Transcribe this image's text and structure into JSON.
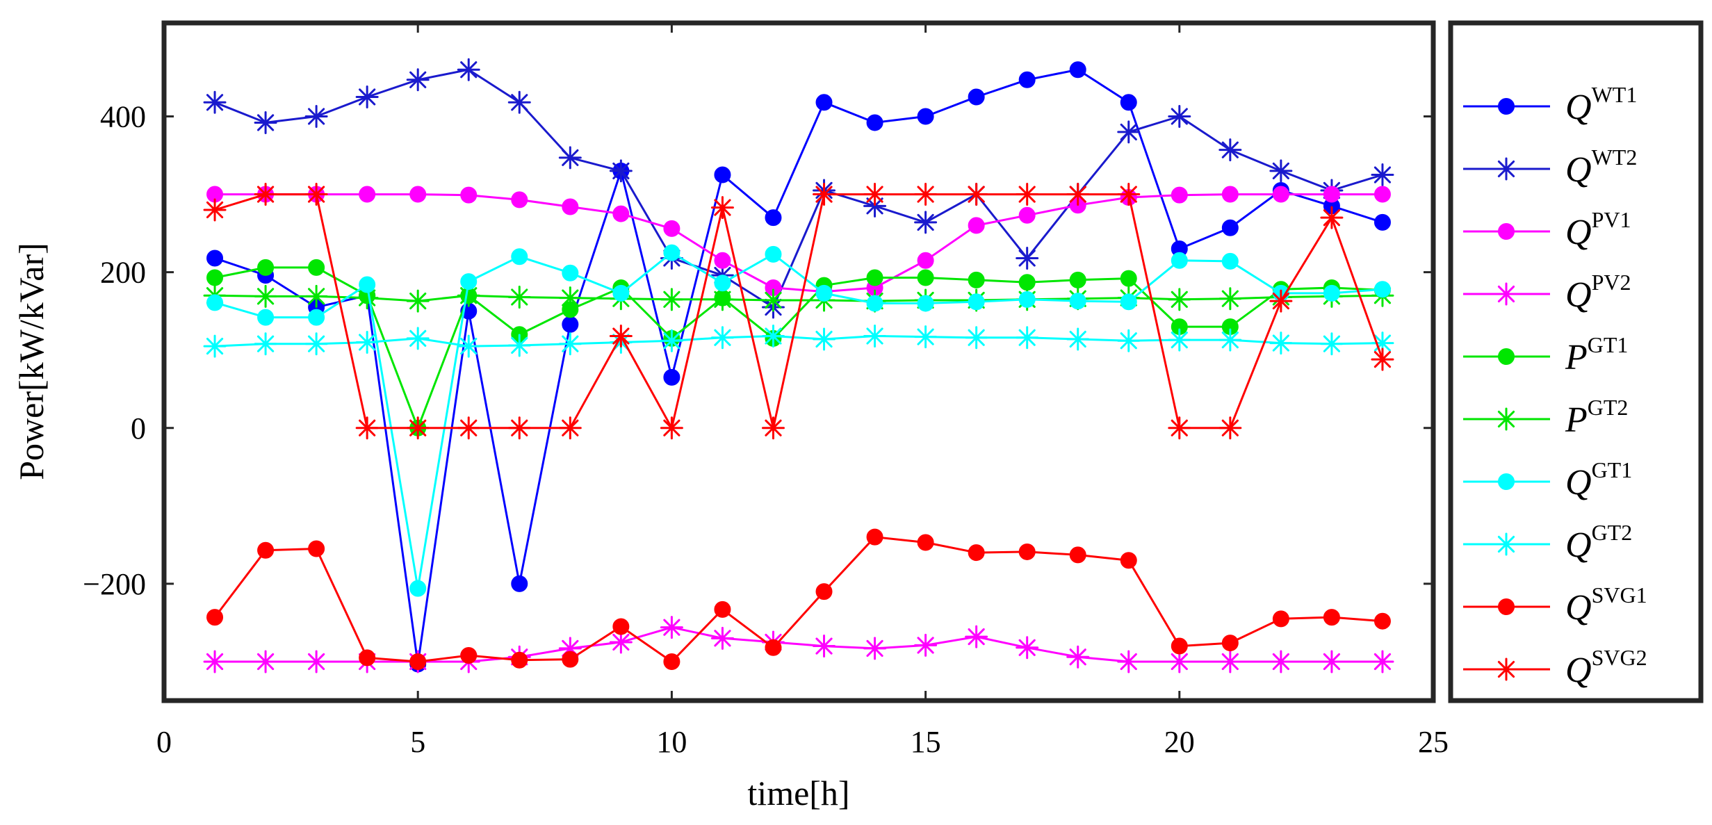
{
  "chart_data": {
    "type": "line",
    "title": "",
    "xlabel": "time[h]",
    "ylabel": "Power[kW/kVar]",
    "xlim": [
      0,
      25
    ],
    "ylim": [
      -350,
      520
    ],
    "xticks": [
      0,
      5,
      10,
      15,
      20,
      25
    ],
    "yticks": [
      -200,
      0,
      200,
      400
    ],
    "ytick_labels": [
      "−200",
      "0",
      "200",
      "400"
    ],
    "grid": false,
    "legend_position": "outside-right",
    "x": [
      1,
      2,
      3,
      4,
      5,
      6,
      7,
      8,
      9,
      10,
      11,
      12,
      13,
      14,
      15,
      16,
      17,
      18,
      19,
      20,
      21,
      22,
      23,
      24
    ],
    "series": [
      {
        "name": "Q^WT1",
        "base": "Q",
        "sup": "WT1",
        "color": "#0000ff",
        "marker": "circle",
        "values": [
          218,
          196,
          155,
          170,
          -303,
          150,
          -200,
          133,
          330,
          65,
          325,
          270,
          418,
          392,
          400,
          425,
          447,
          460,
          418,
          230,
          257,
          305,
          285,
          264
        ]
      },
      {
        "name": "Q^WT2",
        "base": "Q",
        "sup": "WT2",
        "color": "#1a1acd",
        "marker": "asterisk",
        "values": [
          418,
          392,
          400,
          425,
          447,
          460,
          418,
          347,
          330,
          218,
          196,
          155,
          305,
          285,
          264,
          300,
          218,
          300,
          380,
          400,
          357,
          330,
          305,
          325
        ]
      },
      {
        "name": "Q^PV1",
        "base": "Q",
        "sup": "PV1",
        "color": "#ff00ff",
        "marker": "circle",
        "values": [
          300,
          300,
          300,
          300,
          300,
          299,
          293,
          284,
          275,
          256,
          215,
          180,
          175,
          180,
          215,
          260,
          273,
          286,
          296,
          299,
          300,
          300,
          300,
          300
        ]
      },
      {
        "name": "Q^PV2",
        "base": "Q",
        "sup": "PV2",
        "color": "#ff00ff",
        "marker": "asterisk",
        "values": [
          -300,
          -300,
          -300,
          -300,
          -300,
          -300,
          -294,
          -283,
          -275,
          -256,
          -270,
          -275,
          -280,
          -283,
          -279,
          -268,
          -282,
          -294,
          -300,
          -300,
          -300,
          -300,
          -300,
          -300
        ]
      },
      {
        "name": "P^GT1",
        "base": "P",
        "sup": "GT1",
        "color": "#00e600",
        "marker": "circle",
        "values": [
          193,
          206,
          206,
          170,
          0,
          170,
          120,
          152,
          180,
          115,
          167,
          115,
          183,
          193,
          193,
          190,
          187,
          190,
          192,
          130,
          130,
          178,
          180,
          177
        ]
      },
      {
        "name": "P^GT2",
        "base": "P",
        "sup": "GT2",
        "color": "#00e600",
        "marker": "asterisk",
        "values": [
          170,
          169,
          169,
          167,
          163,
          170,
          168,
          167,
          166,
          165,
          165,
          164,
          164,
          163,
          164,
          164,
          165,
          166,
          167,
          165,
          166,
          168,
          169,
          170
        ]
      },
      {
        "name": "Q^GT1",
        "base": "Q",
        "sup": "GT1",
        "color": "#00ffff",
        "marker": "circle",
        "values": [
          161,
          142,
          142,
          184,
          -206,
          188,
          220,
          199,
          173,
          225,
          186,
          223,
          173,
          160,
          160,
          162,
          165,
          163,
          162,
          215,
          214,
          173,
          173,
          178
        ]
      },
      {
        "name": "Q^GT2",
        "base": "Q",
        "sup": "GT2",
        "color": "#00ffff",
        "marker": "asterisk",
        "values": [
          105,
          108,
          108,
          110,
          115,
          105,
          106,
          108,
          110,
          112,
          116,
          118,
          114,
          118,
          117,
          116,
          116,
          114,
          112,
          113,
          113,
          109,
          108,
          109
        ]
      },
      {
        "name": "Q^SVG1",
        "base": "Q",
        "sup": "SVG1",
        "color": "#ff0000",
        "marker": "circle",
        "values": [
          -243,
          -157,
          -155,
          -295,
          -300,
          -292,
          -298,
          -297,
          -255,
          -300,
          -233,
          -282,
          -210,
          -140,
          -147,
          -160,
          -159,
          -163,
          -170,
          -280,
          -276,
          -245,
          -243,
          -248
        ]
      },
      {
        "name": "Q^SVG2",
        "base": "Q",
        "sup": "SVG2",
        "color": "#ff0000",
        "marker": "asterisk",
        "values": [
          280,
          300,
          300,
          0,
          0,
          0,
          0,
          0,
          118,
          0,
          283,
          0,
          300,
          300,
          300,
          300,
          300,
          300,
          300,
          0,
          0,
          163,
          270,
          88
        ]
      }
    ]
  }
}
